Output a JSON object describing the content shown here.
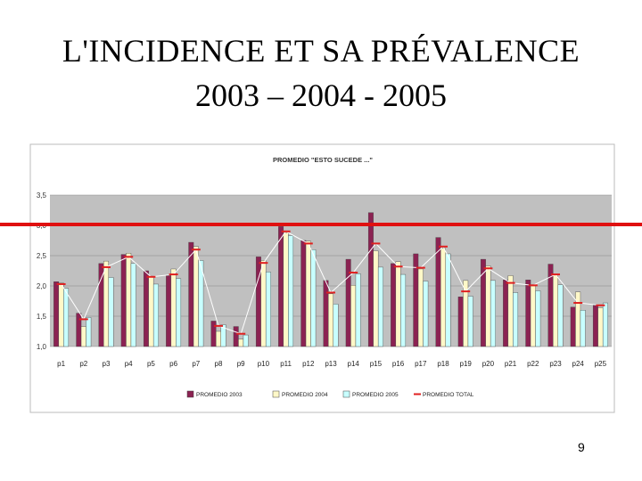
{
  "slide": {
    "title_line1": "L'INCIDENCE ET SA PRÉVALENCE",
    "title_line2": "2003 – 2004 - 2005",
    "page_number": "9",
    "reference_line_color": "#e01010"
  },
  "chart_data": {
    "type": "bar",
    "title": "PROMEDIO \"ESTO SUCEDE ...\"",
    "xlabel": "",
    "ylabel": "",
    "ylim": [
      1.0,
      3.5
    ],
    "yticks": [
      "1,0",
      "1,5",
      "2,0",
      "2,5",
      "3,0",
      "3,5"
    ],
    "grid": true,
    "legend_position": "bottom",
    "categories": [
      "p1",
      "p2",
      "p3",
      "p4",
      "p5",
      "p6",
      "p7",
      "p8",
      "p9",
      "p10",
      "p11",
      "p12",
      "p13",
      "p14",
      "p15",
      "p16",
      "p17",
      "p18",
      "p19",
      "p20",
      "p21",
      "p22",
      "p23",
      "p24",
      "p25"
    ],
    "series": [
      {
        "name": "PROMEDIO 2003",
        "type": "bar",
        "color": "#8b2252",
        "values": [
          2.07,
          1.55,
          2.37,
          2.52,
          2.25,
          2.17,
          2.72,
          1.42,
          1.33,
          2.48,
          2.98,
          2.75,
          2.09,
          2.44,
          3.21,
          2.37,
          2.53,
          2.8,
          1.82,
          2.44,
          2.1,
          2.1,
          2.36,
          1.65,
          1.68
        ]
      },
      {
        "name": "PROMEDIO 2004",
        "type": "bar",
        "color": "#fff8c8",
        "values": [
          2.05,
          1.33,
          2.41,
          2.54,
          2.16,
          2.28,
          2.65,
          1.25,
          1.12,
          2.42,
          2.88,
          2.74,
          1.87,
          2.01,
          2.58,
          2.4,
          2.28,
          2.62,
          2.09,
          2.33,
          2.17,
          2.0,
          2.18,
          1.9,
          1.64
        ]
      },
      {
        "name": "PROMEDIO 2005",
        "type": "bar",
        "color": "#c8ffff",
        "values": [
          1.96,
          1.48,
          2.14,
          2.37,
          2.03,
          2.12,
          2.42,
          1.36,
          1.19,
          2.23,
          2.83,
          2.6,
          1.7,
          2.2,
          2.31,
          2.19,
          2.08,
          2.53,
          1.83,
          2.09,
          1.89,
          1.92,
          2.02,
          1.6,
          1.72
        ]
      },
      {
        "name": "PROMEDIO TOTAL",
        "type": "marker-line",
        "color": "#e02020",
        "values": [
          2.03,
          1.45,
          2.31,
          2.48,
          2.15,
          2.19,
          2.6,
          1.34,
          1.21,
          2.38,
          2.9,
          2.7,
          1.89,
          2.22,
          2.7,
          2.32,
          2.3,
          2.65,
          1.91,
          2.29,
          2.05,
          2.01,
          2.19,
          1.72,
          1.68
        ]
      }
    ]
  }
}
